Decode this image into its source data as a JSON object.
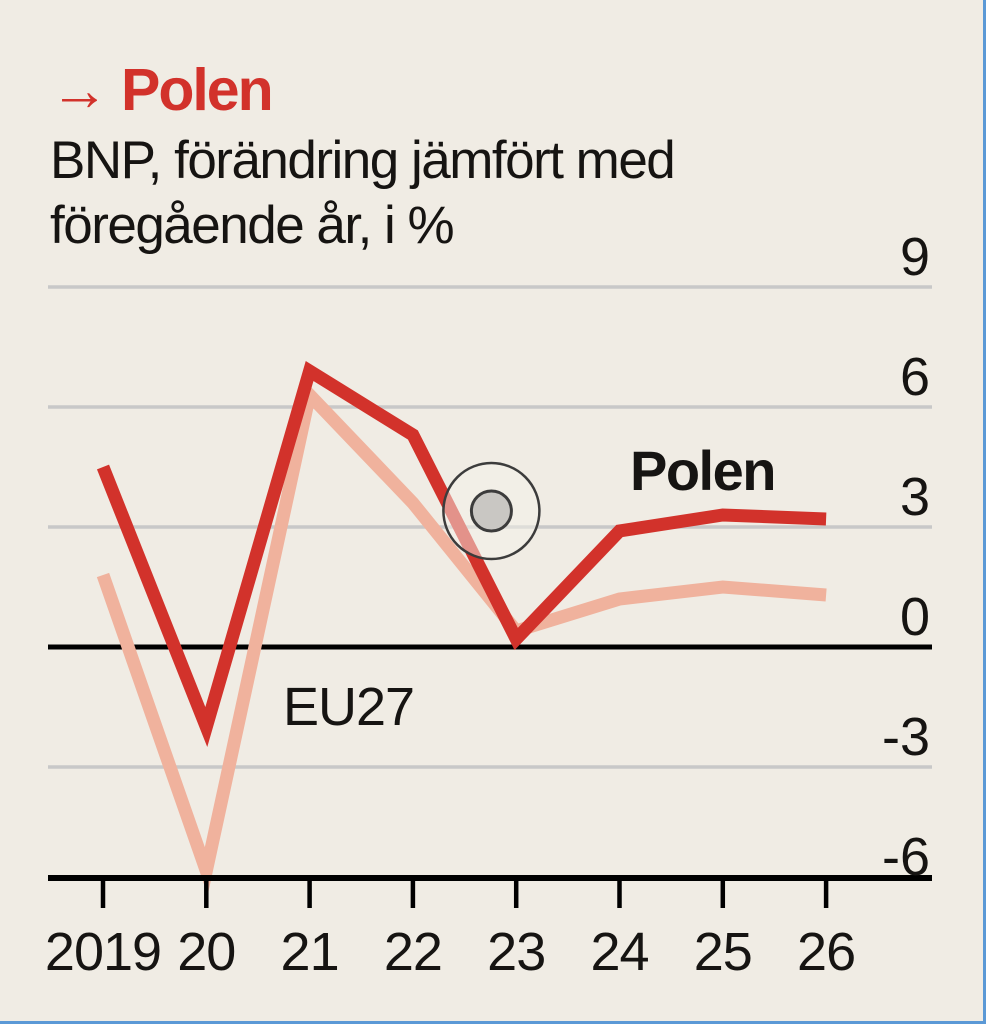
{
  "header": {
    "kicker_arrow": "→",
    "kicker": "Polen",
    "subtitle_line1": "BNP, förändring jämfört med",
    "subtitle_line2": "föregående år, i %"
  },
  "colors": {
    "accent_red": "#d2322b",
    "eu_salmon": "#f0b29d",
    "background": "#f0ece4",
    "gridline": "#c8c8c8",
    "axis": "#000000",
    "text": "#161412",
    "highlight_ring": "#3c3c3c",
    "highlight_dot_fill": "#c9c7c3",
    "highlight_fill": "rgba(244,241,234,0.5)",
    "selection_border_blue": "#5b99d6"
  },
  "chart_data": {
    "type": "line",
    "title": "Polen",
    "subtitle": "BNP, förändring jämfört med föregående år, i %",
    "years": [
      2019,
      2020,
      2021,
      2022,
      2023,
      2024,
      2025,
      2026
    ],
    "x_tick_labels": [
      "2019",
      "20",
      "21",
      "22",
      "23",
      "24",
      "25",
      "26"
    ],
    "y_ticks": [
      9,
      6,
      3,
      0,
      -3,
      -6
    ],
    "y_tick_labels": [
      "9",
      "6",
      "3",
      "0",
      "-3",
      "-6"
    ],
    "ylim": [
      -6.5,
      9.8
    ],
    "grid": "horizontal",
    "legend_position": "inline-labels",
    "series": [
      {
        "name": "Polen",
        "color": "#d2322b",
        "values": [
          4.5,
          -2.0,
          6.9,
          5.3,
          0.2,
          2.9,
          3.3,
          3.2
        ]
      },
      {
        "name": "EU27",
        "color": "#f0b29d",
        "values": [
          1.8,
          -5.6,
          6.3,
          3.6,
          0.4,
          1.2,
          1.5,
          1.3
        ]
      }
    ],
    "annotations": {
      "highlight": {
        "x_index": 3.76,
        "year_approx": 2022.8,
        "value": 3.4
      }
    }
  }
}
